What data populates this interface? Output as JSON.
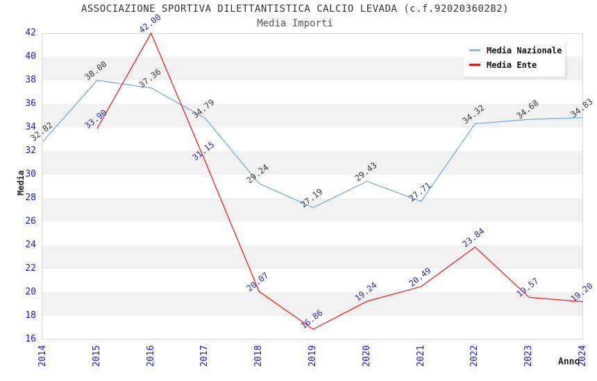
{
  "header": {
    "title": "ASSOCIAZIONE SPORTIVA DILETTANTISTICA CALCIO LEVADA (c.f.92020360282)",
    "subtitle": "Media Importi"
  },
  "axes": {
    "y_title": "Media",
    "x_title": "Anno",
    "y_ticks": [
      42,
      40,
      38,
      36,
      34,
      32,
      30,
      28,
      26,
      24,
      22,
      20,
      18,
      16
    ],
    "x_ticks": [
      "2014",
      "2015",
      "2016",
      "2017",
      "2018",
      "2019",
      "2020",
      "2021",
      "2022",
      "2023",
      "2024"
    ]
  },
  "legend": {
    "items": [
      {
        "label": "Media Nazionale",
        "color": "#88b9e6"
      },
      {
        "label": "Media Ente",
        "color": "#ee1111"
      }
    ]
  },
  "colors": {
    "tick_label": "#1616d6",
    "band_gray": "#f1f1f1",
    "plot_border": "#d4d4d4"
  },
  "chart_data": {
    "type": "line",
    "title": "Media Importi",
    "xlabel": "Anno",
    "ylabel": "Media",
    "x": [
      2014,
      2015,
      2016,
      2017,
      2018,
      2019,
      2020,
      2021,
      2022,
      2023,
      2024
    ],
    "ylim": [
      16,
      42
    ],
    "ytick_step": 2,
    "grid": "alternating horizontal bands, gray on even 2-unit intervals",
    "legend_position": "top-right",
    "series": [
      {
        "name": "Media Nazionale",
        "color": "#79aadc",
        "label_color": "#3a3a3a",
        "values": [
          32.82,
          38.0,
          37.36,
          34.79,
          29.24,
          27.19,
          29.43,
          27.71,
          34.32,
          34.68,
          34.83
        ]
      },
      {
        "name": "Media Ente",
        "color": "#e62222",
        "label_color": "#2b2ba6",
        "values": [
          null,
          33.9,
          42.0,
          31.15,
          20.07,
          16.86,
          19.24,
          20.49,
          23.84,
          19.57,
          19.2
        ]
      }
    ]
  }
}
